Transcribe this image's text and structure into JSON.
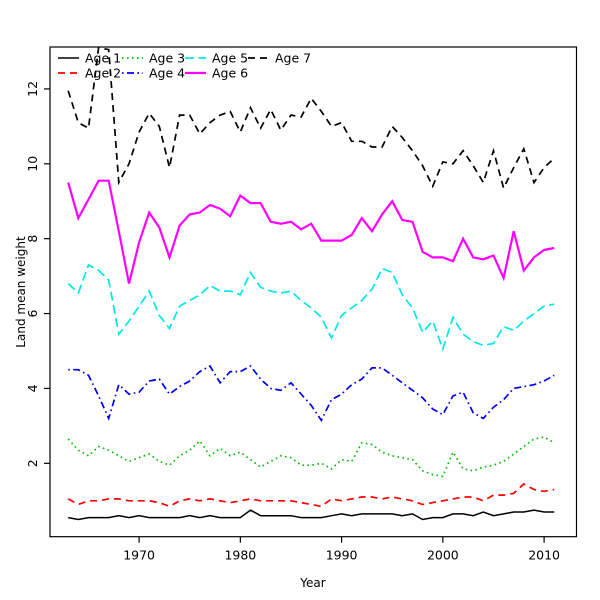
{
  "chart_data": {
    "type": "line",
    "title": "",
    "xlabel": "Year",
    "ylabel": "Land mean weight",
    "xlim": [
      1961.2,
      2013.2
    ],
    "ylim": [
      0.04,
      13.12
    ],
    "grid": false,
    "legend_position": "top-left",
    "legend_columns": 4,
    "x_ticks": [
      1970,
      1980,
      1990,
      2000,
      2010
    ],
    "x_tick_labels": [
      "1970",
      "1980",
      "1990",
      "2000",
      "2010"
    ],
    "y_ticks": [
      2,
      4,
      6,
      8,
      10,
      12
    ],
    "y_tick_labels": [
      "2",
      "4",
      "6",
      "8",
      "10",
      "12"
    ],
    "x": [
      1963,
      1964,
      1965,
      1966,
      1967,
      1968,
      1969,
      1970,
      1971,
      1972,
      1973,
      1974,
      1975,
      1976,
      1977,
      1978,
      1979,
      1980,
      1981,
      1982,
      1983,
      1984,
      1985,
      1986,
      1987,
      1988,
      1989,
      1990,
      1991,
      1992,
      1993,
      1994,
      1995,
      1996,
      1997,
      1998,
      1999,
      2000,
      2001,
      2002,
      2003,
      2004,
      2005,
      2006,
      2007,
      2008,
      2009,
      2010,
      2011
    ],
    "series": [
      {
        "name": "Age 1",
        "color": "#000000",
        "linetype": "solid",
        "line_width": 1.5,
        "values": [
          0.55,
          0.5,
          0.55,
          0.55,
          0.55,
          0.6,
          0.55,
          0.6,
          0.55,
          0.55,
          0.55,
          0.55,
          0.6,
          0.55,
          0.6,
          0.55,
          0.55,
          0.55,
          0.75,
          0.6,
          0.6,
          0.6,
          0.6,
          0.55,
          0.55,
          0.55,
          0.6,
          0.65,
          0.6,
          0.65,
          0.65,
          0.65,
          0.65,
          0.6,
          0.65,
          0.5,
          0.55,
          0.55,
          0.65,
          0.65,
          0.6,
          0.7,
          0.6,
          0.65,
          0.7,
          0.7,
          0.75,
          0.7,
          0.7
        ]
      },
      {
        "name": "Age 2",
        "color": "#ff0000",
        "linetype": "dashed",
        "line_width": 1.7,
        "values": [
          1.05,
          0.9,
          1.0,
          1.0,
          1.05,
          1.05,
          1.0,
          1.0,
          1.0,
          0.95,
          0.85,
          1.0,
          1.05,
          1.0,
          1.05,
          1.0,
          0.95,
          1.0,
          1.05,
          1.0,
          1.0,
          1.0,
          1.0,
          0.95,
          0.9,
          0.85,
          1.05,
          1.0,
          1.05,
          1.1,
          1.1,
          1.05,
          1.1,
          1.05,
          1.0,
          0.9,
          0.95,
          1.0,
          1.05,
          1.1,
          1.1,
          1.0,
          1.15,
          1.15,
          1.2,
          1.45,
          1.3,
          1.25,
          1.3
        ]
      },
      {
        "name": "Age 3",
        "color": "#00bf00",
        "linetype": "dotted",
        "line_width": 1.7,
        "values": [
          2.65,
          2.35,
          2.2,
          2.45,
          2.35,
          2.2,
          2.05,
          2.15,
          2.25,
          2.05,
          1.95,
          2.2,
          2.35,
          2.6,
          2.2,
          2.4,
          2.2,
          2.3,
          2.1,
          1.9,
          2.05,
          2.2,
          2.15,
          1.95,
          1.95,
          2.0,
          1.85,
          2.1,
          2.05,
          2.55,
          2.5,
          2.3,
          2.2,
          2.15,
          2.1,
          1.8,
          1.7,
          1.65,
          2.3,
          1.85,
          1.8,
          1.9,
          1.95,
          2.05,
          2.25,
          2.45,
          2.65,
          2.7,
          2.55
        ]
      },
      {
        "name": "Age 4",
        "color": "#0000ee",
        "linetype": "dotdash",
        "line_width": 1.7,
        "values": [
          4.5,
          4.5,
          4.35,
          3.8,
          3.2,
          4.1,
          3.85,
          3.9,
          4.2,
          4.25,
          3.85,
          4.05,
          4.2,
          4.45,
          4.6,
          4.15,
          4.45,
          4.45,
          4.6,
          4.25,
          4.0,
          3.95,
          4.15,
          3.85,
          3.55,
          3.15,
          3.7,
          3.85,
          4.1,
          4.25,
          4.55,
          4.55,
          4.35,
          4.15,
          3.95,
          3.75,
          3.45,
          3.3,
          3.8,
          3.9,
          3.35,
          3.2,
          3.5,
          3.7,
          4.0,
          4.05,
          4.1,
          4.2,
          4.35
        ]
      },
      {
        "name": "Age 5",
        "color": "#00e8e8",
        "linetype": "longdash",
        "line_width": 1.7,
        "values": [
          6.8,
          6.55,
          7.3,
          7.15,
          6.9,
          5.45,
          5.8,
          6.2,
          6.6,
          5.95,
          5.6,
          6.2,
          6.35,
          6.5,
          6.75,
          6.6,
          6.6,
          6.5,
          7.1,
          6.7,
          6.6,
          6.55,
          6.6,
          6.35,
          6.15,
          5.9,
          5.35,
          5.95,
          6.15,
          6.35,
          6.65,
          7.2,
          7.1,
          6.5,
          6.15,
          5.5,
          5.8,
          5.05,
          5.9,
          5.45,
          5.25,
          5.15,
          5.2,
          5.65,
          5.55,
          5.8,
          6.0,
          6.2,
          6.25
        ]
      },
      {
        "name": "Age 6",
        "color": "#ff00ff",
        "linetype": "solid",
        "line_width": 2.2,
        "values": [
          9.5,
          8.55,
          9.05,
          9.55,
          9.55,
          8.2,
          6.8,
          7.9,
          8.7,
          8.3,
          7.5,
          8.35,
          8.65,
          8.7,
          8.9,
          8.8,
          8.6,
          9.15,
          8.95,
          8.95,
          8.45,
          8.4,
          8.45,
          8.25,
          8.4,
          7.95,
          7.95,
          7.95,
          8.1,
          8.55,
          8.2,
          8.65,
          9.0,
          8.5,
          8.45,
          7.65,
          7.5,
          7.5,
          7.4,
          8.0,
          7.5,
          7.45,
          7.55,
          6.95,
          8.2,
          7.15,
          7.5,
          7.7,
          7.75
        ]
      },
      {
        "name": "Age 7",
        "color": "#000000",
        "linetype": "dashed",
        "line_width": 1.7,
        "values": [
          11.95,
          11.1,
          10.95,
          13.1,
          13.05,
          9.5,
          10.0,
          10.85,
          11.35,
          11.0,
          9.9,
          11.3,
          11.3,
          10.8,
          11.1,
          11.3,
          11.4,
          10.85,
          11.5,
          10.95,
          11.45,
          10.9,
          11.3,
          11.25,
          11.75,
          11.4,
          11.0,
          11.1,
          10.6,
          10.6,
          10.45,
          10.45,
          11.0,
          10.7,
          10.35,
          9.95,
          9.4,
          10.05,
          10.0,
          10.35,
          9.95,
          9.5,
          10.35,
          9.35,
          9.9,
          10.4,
          9.5,
          9.9,
          10.15
        ]
      }
    ]
  }
}
